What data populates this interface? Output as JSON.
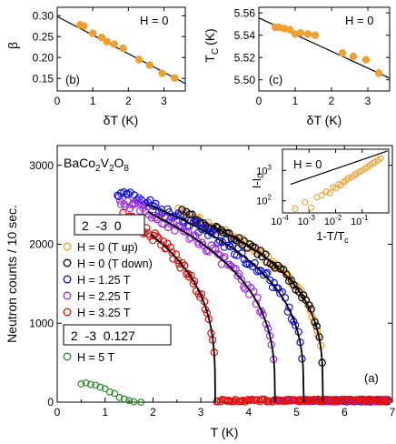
{
  "chart_data": [
    {
      "id": "b",
      "type": "scatter",
      "panel_label": "(b)",
      "annotation": "H = 0",
      "xlabel": "δT (K)",
      "ylabel": "β",
      "xlim": [
        0,
        3.6
      ],
      "ylim": [
        0.12,
        0.32
      ],
      "xticks": [
        0,
        1,
        2,
        3
      ],
      "yticks": [
        0.15,
        0.2,
        0.25,
        0.3
      ],
      "points_x": [
        0.65,
        0.75,
        1.0,
        1.25,
        1.4,
        1.6,
        1.85,
        2.3,
        2.6,
        2.95,
        3.3
      ],
      "points_y": [
        0.278,
        0.275,
        0.258,
        0.248,
        0.238,
        0.232,
        0.222,
        0.195,
        0.182,
        0.162,
        0.151
      ],
      "fit": {
        "x": [
          0.0,
          3.6
        ],
        "y": [
          0.298,
          0.138
        ]
      }
    },
    {
      "id": "c",
      "type": "scatter",
      "panel_label": "(c)",
      "annotation": "H = 0",
      "xlabel": "δT (K)",
      "ylabel": "T",
      "ylabel_sub": "C",
      "ylabel_unit": "(K)",
      "xlim": [
        0,
        3.6
      ],
      "ylim": [
        5.49,
        5.565
      ],
      "xticks": [
        0,
        1,
        2,
        3
      ],
      "yticks": [
        5.5,
        5.52,
        5.54,
        5.56
      ],
      "points_x": [
        0.45,
        0.55,
        0.7,
        0.85,
        1.0,
        1.15,
        1.35,
        1.55,
        2.3,
        2.6,
        2.95,
        3.3
      ],
      "points_y": [
        5.547,
        5.547,
        5.546,
        5.545,
        5.541,
        5.542,
        5.541,
        5.54,
        5.524,
        5.521,
        5.518,
        5.506
      ],
      "fit": {
        "x": [
          0.0,
          3.6
        ],
        "y": [
          5.5555,
          5.5015
        ]
      }
    },
    {
      "id": "a",
      "type": "scatter",
      "panel_label": "(a)",
      "compound": {
        "parts": [
          [
            "Ba",
            ""
          ],
          [
            "Co",
            "2"
          ],
          [
            "V",
            "2"
          ],
          [
            "O",
            "8"
          ]
        ]
      },
      "xlabel": "T (K)",
      "ylabel": "Neutron counts / 10 sec.",
      "xlim": [
        0,
        7
      ],
      "ylim": [
        0,
        3250
      ],
      "xticks": [
        0,
        1,
        2,
        3,
        4,
        5,
        6,
        7
      ],
      "yticks": [
        0,
        1000,
        2000,
        3000
      ],
      "legend_group_1": "2  -3  0",
      "legend_group_2": "2  -3  0.127",
      "series": [
        {
          "name": "H = 0 (T up)",
          "color": "#f0a030",
          "I0": 2900,
          "Tc": 5.55,
          "beta": 0.3,
          "Tmin": 2.55,
          "Tmax": 6.9,
          "n": 95,
          "noise": 45,
          "fit": false
        },
        {
          "name": "H = 0 (T down)",
          "color": "#000000",
          "I0": 2900,
          "Tc": 5.55,
          "beta": 0.3,
          "Tmin": 2.6,
          "Tmax": 6.9,
          "n": 80,
          "noise": 45,
          "fit": true
        },
        {
          "name": "H = 1.25 T",
          "color": "#1010e0",
          "I0": 2900,
          "Tc": 5.15,
          "beta": 0.32,
          "Tmin": 1.25,
          "Tmax": 6.9,
          "n": 125,
          "noise": 70,
          "fit": true
        },
        {
          "name": "H = 2.25 T",
          "color": "#a030e0",
          "I0": 2880,
          "Tc": 4.55,
          "beta": 0.33,
          "Tmin": 1.3,
          "Tmax": 6.9,
          "n": 135,
          "noise": 70,
          "fit": true
        },
        {
          "name": "H = 3.25 T",
          "color": "#e01010",
          "I0": 2780,
          "Tc": 3.3,
          "beta": 0.3,
          "Tmin": 1.35,
          "Tmax": 6.9,
          "n": 150,
          "noise": 70,
          "fit": true
        }
      ],
      "series_5T": {
        "name": "H = 5 T",
        "color": "#2a8a2a",
        "x": [
          0.5,
          0.6,
          0.7,
          0.8,
          0.9,
          1.0,
          1.1,
          1.2,
          1.3,
          1.4,
          1.5,
          1.6,
          1.75
        ],
        "y": [
          230,
          245,
          225,
          215,
          190,
          170,
          130,
          110,
          60,
          40,
          20,
          5,
          0
        ]
      }
    },
    {
      "id": "a-inset",
      "type": "scatter",
      "annotation": "H = 0",
      "xlabel": "1-T/T",
      "xlabel_sub": "c",
      "ylabel": "I-I",
      "ylabel_sub": "0",
      "xscale": "log",
      "yscale": "log",
      "xlim": [
        0.0001,
        1
      ],
      "ylim": [
        40,
        5000
      ],
      "xticks": [
        0.0001,
        0.001,
        0.01,
        0.1
      ],
      "xtick_labels": [
        [
          "10",
          "-4"
        ],
        [
          "10",
          "-3"
        ],
        [
          "10",
          "-2"
        ],
        [
          "10",
          "-1"
        ]
      ],
      "yticks": [
        100,
        1000
      ],
      "ytick_labels": [
        [
          "10",
          "2"
        ],
        [
          "10",
          "3"
        ]
      ],
      "color": "#f0a030",
      "points_x": [
        0.0003,
        0.0007,
        0.0012,
        0.002,
        0.003,
        0.0045,
        0.006,
        0.008,
        0.01,
        0.013,
        0.016,
        0.02,
        0.025,
        0.03,
        0.04,
        0.05,
        0.06,
        0.08,
        0.1,
        0.13,
        0.16,
        0.2,
        0.25,
        0.3,
        0.4,
        0.5
      ],
      "points_y": [
        55,
        90,
        60,
        130,
        150,
        200,
        180,
        280,
        260,
        350,
        330,
        420,
        480,
        560,
        600,
        700,
        780,
        900,
        1000,
        1150,
        1300,
        1500,
        1700,
        1900,
        2200,
        2500
      ],
      "fit": {
        "A": 4500,
        "beta": 0.3
      }
    }
  ]
}
